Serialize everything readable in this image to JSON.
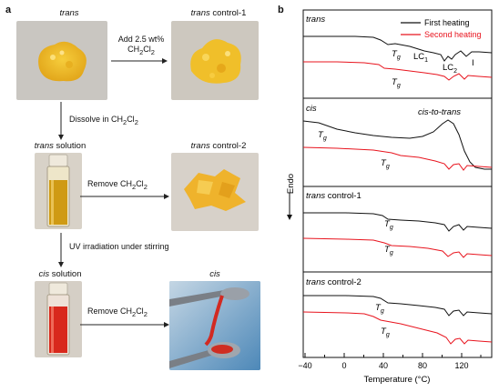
{
  "panel_a": {
    "letter": "a",
    "labels": {
      "trans": "trans",
      "trans_control_1_italic": "trans",
      "trans_control_1_rest": " control-1",
      "trans_solution_italic": "trans",
      "trans_solution_rest": " solution",
      "trans_control_2_italic": "trans",
      "trans_control_2_rest": " control-2",
      "cis_solution_italic": "cis",
      "cis_solution_rest": " solution",
      "cis": "cis"
    },
    "steps": {
      "add_line1": "Add 2.5 wt%",
      "add_line2_pre": "CH",
      "add_line2_sub1": "2",
      "add_line2_mid": "Cl",
      "add_line2_sub2": "2",
      "dissolve_pre": "Dissolve in CH",
      "dissolve_sub1": "2",
      "dissolve_mid": "Cl",
      "dissolve_sub2": "2",
      "remove1_pre": "Remove CH",
      "remove1_sub1": "2",
      "remove1_mid": "Cl",
      "remove1_sub2": "2",
      "uv": "UV irradiation under stirring",
      "remove2_pre": "Remove CH",
      "remove2_sub1": "2",
      "remove2_mid": "Cl",
      "remove2_sub2": "2"
    },
    "colors": {
      "powder": "#f2c12e",
      "solution_yellow": "#d9a318",
      "solution_red": "#d9331f",
      "bg_grey": "#c8c5c0"
    }
  },
  "panel_b": {
    "letter": "b",
    "legend": [
      "First heating",
      "Second heating"
    ],
    "legend_colors": [
      "#111111",
      "#e8141e"
    ],
    "ylabel": "Endo",
    "xlabel": "Temperature (°C)",
    "xticks": [
      "−40",
      "0",
      "40",
      "80",
      "120"
    ],
    "tg": "T",
    "tg_sub": "g",
    "lc1": "LC",
    "lc1_sub": "1",
    "lc2": "LC",
    "lc2_sub": "2",
    "iso": "I",
    "cis_to_trans": "cis-to-trans",
    "subplot_titles": {
      "trans": "trans",
      "cis": "cis",
      "c1_italic": "trans",
      "c1_rest": " control-1",
      "c2_italic": "trans",
      "c2_rest": " control-2"
    }
  }
}
